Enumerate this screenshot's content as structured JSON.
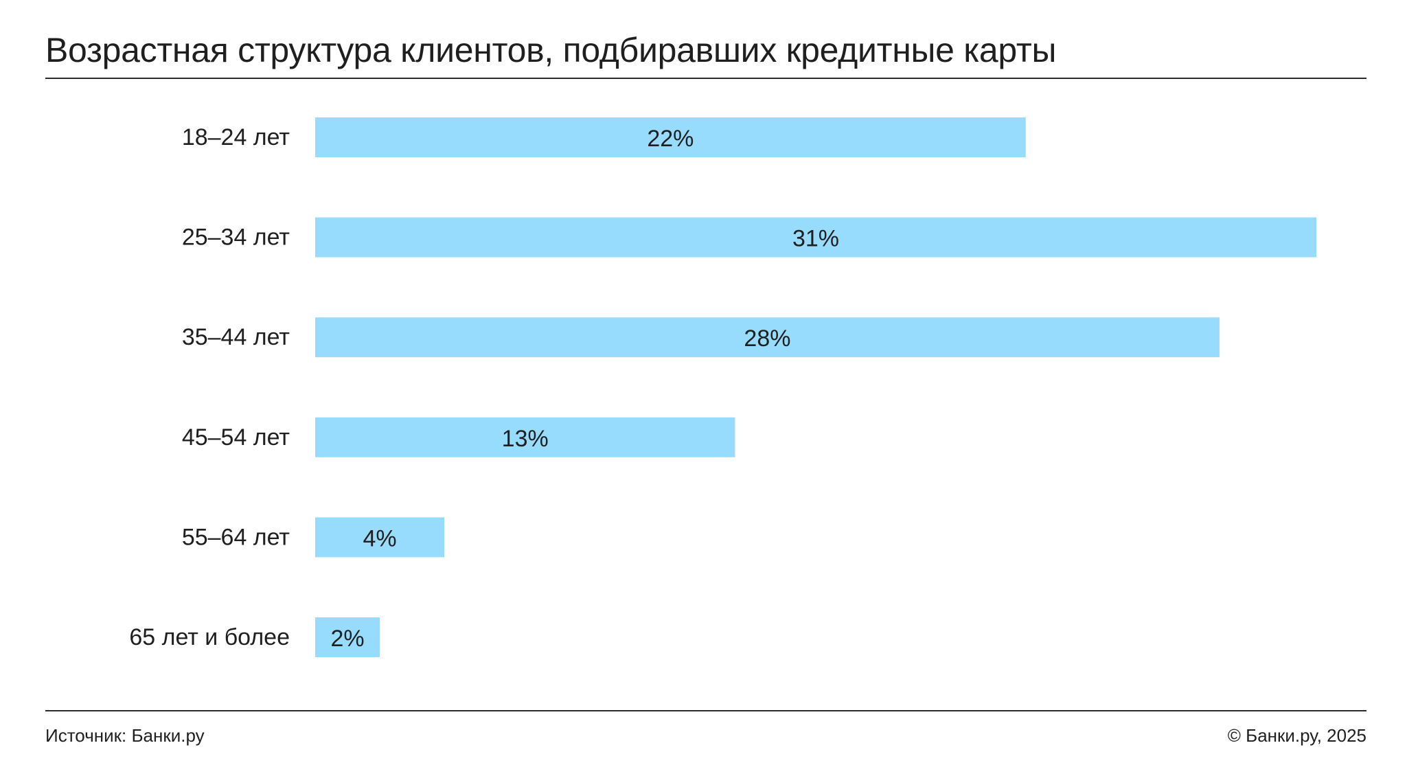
{
  "header": {
    "title": "Возрастная структура клиентов, подбиравших кредитные карты"
  },
  "chart_data": {
    "type": "bar",
    "orientation": "horizontal",
    "title": "Возрастная структура клиентов, подбиравших кредитные карты",
    "categories": [
      "18–24 лет",
      "25–34 лет",
      "35–44 лет",
      "45–54 лет",
      "55–64 лет",
      "65 лет и более"
    ],
    "values": [
      22,
      31,
      28,
      13,
      4,
      2
    ],
    "labels": [
      "22%",
      "31%",
      "28%",
      "13%",
      "4%",
      "2%"
    ],
    "unit": "%",
    "xlim": [
      0,
      31
    ],
    "xlabel": "",
    "ylabel": "",
    "grid": false,
    "legend": "none",
    "bar_color": "#97dbfd"
  },
  "footer": {
    "source": "Источник: Банки.ру",
    "copyright": "© Банки.ру, 2025"
  }
}
